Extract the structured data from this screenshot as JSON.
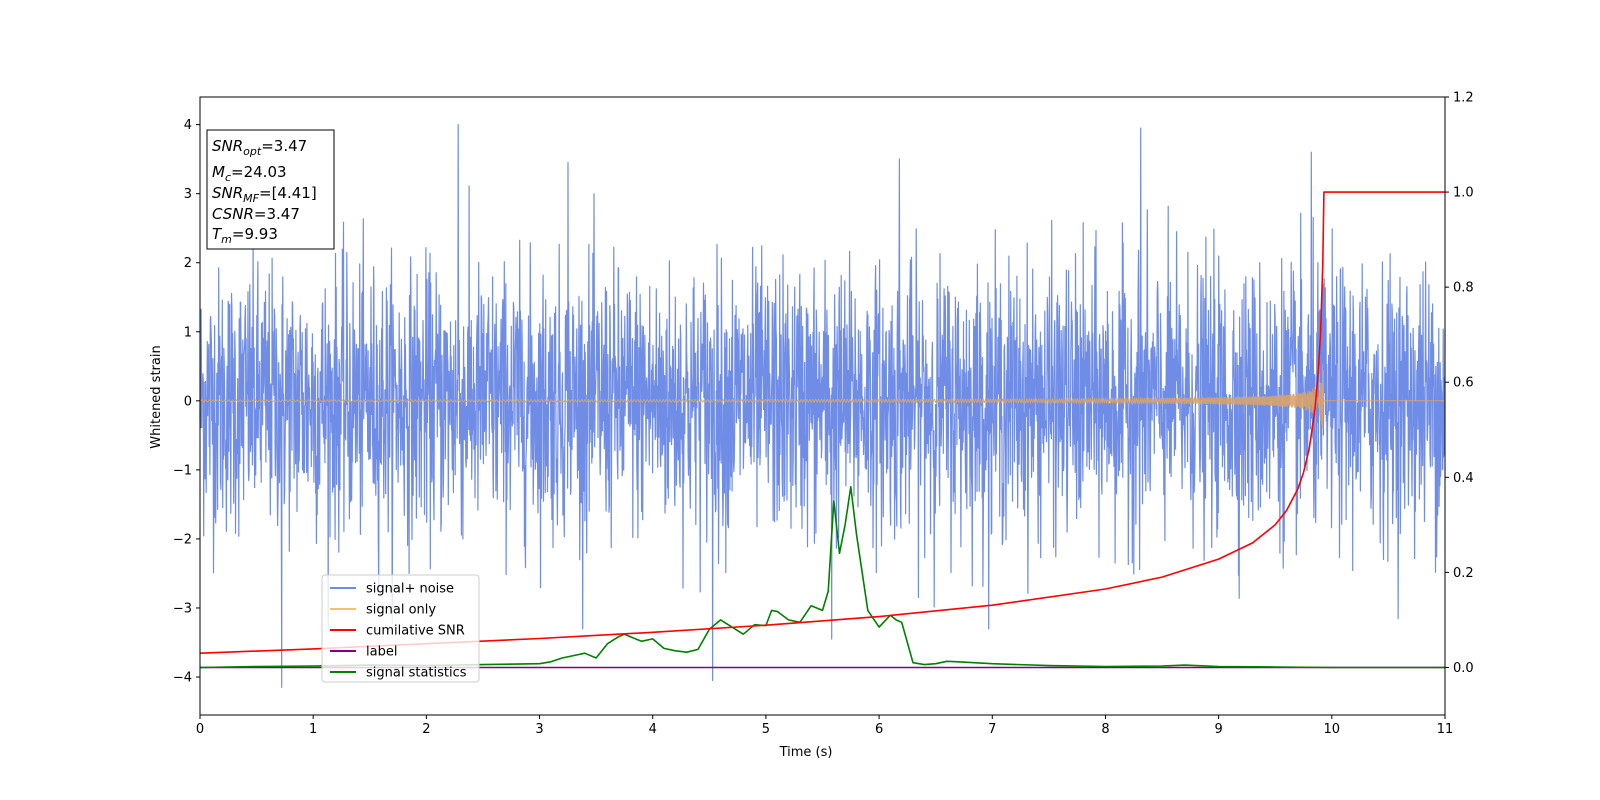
{
  "chart_data": {
    "type": "line",
    "title": "",
    "xlabel": "Time (s)",
    "ylabel": "Whitened strain",
    "xlim": [
      0,
      11
    ],
    "ylim_left": [
      -4.55,
      4.4
    ],
    "ylim_right": [
      -0.1,
      1.2
    ],
    "x_ticks": [
      0,
      1,
      2,
      3,
      4,
      5,
      6,
      7,
      8,
      9,
      10,
      11
    ],
    "y_left_ticks": [
      -4,
      -3,
      -2,
      -1,
      0,
      1,
      2,
      3,
      4
    ],
    "y_right_ticks": [
      "0.0",
      "0.2",
      "0.4",
      "0.6",
      "0.8",
      "1.0",
      "1.2"
    ],
    "legend_position": "lower-left",
    "grid": false,
    "info_box": {
      "snr_opt": {
        "sym": "SNR",
        "sub": "opt",
        "value": "=3.47"
      },
      "mc": {
        "sym": "M",
        "sub": "c",
        "value": "=24.03"
      },
      "snr_mf": {
        "sym": "SNR",
        "sub": "MF",
        "value": "=[4.41]"
      },
      "csnr": {
        "sym": "CSNR",
        "sub": "",
        "value": "=3.47"
      },
      "tm": {
        "sym": "T",
        "sub": "m",
        "value": "=9.93"
      }
    },
    "series": [
      {
        "name": "signal+ noise",
        "color": "#6f8de6",
        "axis": "left",
        "kind": "noise",
        "sigma": 0.95,
        "peaks": [
          [
            2.28,
            4.0
          ],
          [
            0.72,
            -4.15
          ],
          [
            4.53,
            -4.05
          ],
          [
            8.31,
            3.95
          ],
          [
            9.82,
            3.6
          ],
          [
            5.58,
            -3.45
          ],
          [
            3.25,
            3.45
          ],
          [
            6.18,
            3.5
          ]
        ]
      },
      {
        "name": "signal only",
        "color": "#f5c26b",
        "axis": "left",
        "kind": "chirp",
        "t_merge": 9.93,
        "peak_amplitude": 0.7
      },
      {
        "name": "cumilative SNR",
        "color": "#ff0000",
        "axis": "right",
        "x": [
          0,
          1,
          2,
          3,
          4,
          5,
          6,
          7,
          8,
          8.5,
          9,
          9.3,
          9.5,
          9.6,
          9.7,
          9.75,
          9.8,
          9.85,
          9.88,
          9.9,
          9.92,
          9.93,
          11
        ],
        "y": [
          0.03,
          0.039,
          0.05,
          0.061,
          0.074,
          0.089,
          0.107,
          0.131,
          0.165,
          0.19,
          0.228,
          0.262,
          0.3,
          0.33,
          0.376,
          0.41,
          0.46,
          0.54,
          0.62,
          0.7,
          0.85,
          1.0,
          1.0
        ]
      },
      {
        "name": "label",
        "color": "#800080",
        "axis": "right",
        "x": [
          0,
          11
        ],
        "y": [
          0,
          0
        ]
      },
      {
        "name": "signal statistics",
        "color": "#008000",
        "axis": "right",
        "x": [
          0,
          0.5,
          1,
          1.5,
          2,
          2.5,
          3,
          3.1,
          3.2,
          3.3,
          3.4,
          3.5,
          3.6,
          3.7,
          3.75,
          3.8,
          3.9,
          4.0,
          4.1,
          4.2,
          4.3,
          4.4,
          4.5,
          4.6,
          4.7,
          4.8,
          4.9,
          5.0,
          5.05,
          5.1,
          5.2,
          5.3,
          5.4,
          5.5,
          5.55,
          5.6,
          5.65,
          5.7,
          5.75,
          5.8,
          5.9,
          6.0,
          6.1,
          6.15,
          6.2,
          6.3,
          6.4,
          6.5,
          6.6,
          6.7,
          7.0,
          7.5,
          8.0,
          8.5,
          8.7,
          9.0,
          9.5,
          10.0,
          11
        ],
        "y": [
          0.0,
          0.002,
          0.003,
          0.005,
          0.004,
          0.006,
          0.008,
          0.012,
          0.02,
          0.025,
          0.03,
          0.02,
          0.05,
          0.065,
          0.07,
          0.065,
          0.055,
          0.06,
          0.04,
          0.035,
          0.032,
          0.038,
          0.08,
          0.1,
          0.085,
          0.07,
          0.09,
          0.088,
          0.12,
          0.118,
          0.1,
          0.095,
          0.13,
          0.12,
          0.16,
          0.35,
          0.24,
          0.3,
          0.38,
          0.28,
          0.12,
          0.085,
          0.11,
          0.1,
          0.095,
          0.01,
          0.006,
          0.008,
          0.013,
          0.012,
          0.008,
          0.004,
          0.002,
          0.003,
          0.005,
          0.002,
          0.001,
          0.0,
          0.0
        ]
      }
    ]
  }
}
